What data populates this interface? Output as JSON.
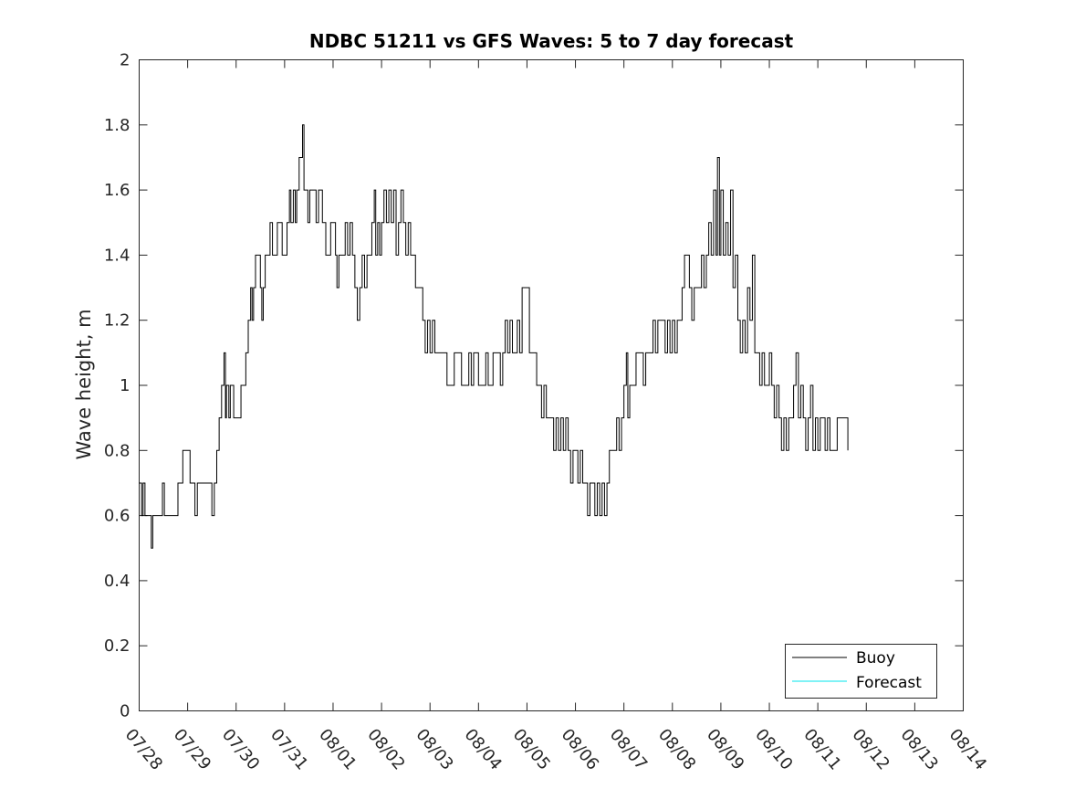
{
  "chart_data": {
    "type": "line",
    "title": "NDBC 51211 vs GFS Waves: 5 to 7 day forecast",
    "xlabel": "",
    "ylabel": "Wave height, m",
    "x_tick_labels": [
      "07/28",
      "07/29",
      "07/30",
      "07/31",
      "08/01",
      "08/02",
      "08/03",
      "08/04",
      "08/05",
      "08/06",
      "08/07",
      "08/08",
      "08/09",
      "08/10",
      "08/11",
      "08/12",
      "08/13",
      "08/14"
    ],
    "y_tick_labels": [
      "0",
      "0.2",
      "0.4",
      "0.6",
      "0.8",
      "1",
      "1.2",
      "1.4",
      "1.6",
      "1.8",
      "2"
    ],
    "xlim": [
      "07/28",
      "08/14"
    ],
    "ylim": [
      0,
      2
    ],
    "grid": false,
    "legend_position": "bottom-right",
    "series": [
      {
        "name": "Buoy",
        "color": "#000000",
        "x_unit": "days since 07/28 00:00",
        "points": [
          [
            0.0,
            0.7
          ],
          [
            0.05,
            0.6
          ],
          [
            0.08,
            0.7
          ],
          [
            0.12,
            0.6
          ],
          [
            0.2,
            0.6
          ],
          [
            0.25,
            0.5
          ],
          [
            0.28,
            0.6
          ],
          [
            0.35,
            0.6
          ],
          [
            0.45,
            0.6
          ],
          [
            0.48,
            0.7
          ],
          [
            0.52,
            0.6
          ],
          [
            0.6,
            0.6
          ],
          [
            0.75,
            0.6
          ],
          [
            0.8,
            0.7
          ],
          [
            0.85,
            0.7
          ],
          [
            0.9,
            0.8
          ],
          [
            1.0,
            0.8
          ],
          [
            1.05,
            0.7
          ],
          [
            1.1,
            0.7
          ],
          [
            1.15,
            0.6
          ],
          [
            1.2,
            0.7
          ],
          [
            1.35,
            0.7
          ],
          [
            1.45,
            0.7
          ],
          [
            1.5,
            0.6
          ],
          [
            1.55,
            0.7
          ],
          [
            1.6,
            0.8
          ],
          [
            1.65,
            0.9
          ],
          [
            1.7,
            1.0
          ],
          [
            1.75,
            1.1
          ],
          [
            1.78,
            0.9
          ],
          [
            1.8,
            1.0
          ],
          [
            1.85,
            0.9
          ],
          [
            1.88,
            1.0
          ],
          [
            1.95,
            0.9
          ],
          [
            2.05,
            0.9
          ],
          [
            2.1,
            1.0
          ],
          [
            2.15,
            1.0
          ],
          [
            2.2,
            1.1
          ],
          [
            2.25,
            1.2
          ],
          [
            2.3,
            1.3
          ],
          [
            2.33,
            1.2
          ],
          [
            2.36,
            1.3
          ],
          [
            2.4,
            1.4
          ],
          [
            2.48,
            1.4
          ],
          [
            2.5,
            1.3
          ],
          [
            2.53,
            1.2
          ],
          [
            2.56,
            1.3
          ],
          [
            2.6,
            1.4
          ],
          [
            2.65,
            1.4
          ],
          [
            2.7,
            1.5
          ],
          [
            2.75,
            1.4
          ],
          [
            2.8,
            1.4
          ],
          [
            2.85,
            1.5
          ],
          [
            2.9,
            1.5
          ],
          [
            2.95,
            1.4
          ],
          [
            3.0,
            1.4
          ],
          [
            3.05,
            1.5
          ],
          [
            3.1,
            1.6
          ],
          [
            3.13,
            1.5
          ],
          [
            3.18,
            1.6
          ],
          [
            3.22,
            1.5
          ],
          [
            3.25,
            1.6
          ],
          [
            3.3,
            1.7
          ],
          [
            3.33,
            1.7
          ],
          [
            3.37,
            1.8
          ],
          [
            3.4,
            1.6
          ],
          [
            3.43,
            1.6
          ],
          [
            3.48,
            1.5
          ],
          [
            3.52,
            1.6
          ],
          [
            3.6,
            1.6
          ],
          [
            3.65,
            1.5
          ],
          [
            3.7,
            1.6
          ],
          [
            3.75,
            1.6
          ],
          [
            3.78,
            1.5
          ],
          [
            3.82,
            1.5
          ],
          [
            3.85,
            1.4
          ],
          [
            3.9,
            1.4
          ],
          [
            3.95,
            1.5
          ],
          [
            4.0,
            1.5
          ],
          [
            4.05,
            1.4
          ],
          [
            4.08,
            1.3
          ],
          [
            4.12,
            1.4
          ],
          [
            4.2,
            1.4
          ],
          [
            4.25,
            1.5
          ],
          [
            4.3,
            1.4
          ],
          [
            4.35,
            1.5
          ],
          [
            4.4,
            1.4
          ],
          [
            4.45,
            1.3
          ],
          [
            4.5,
            1.2
          ],
          [
            4.55,
            1.3
          ],
          [
            4.6,
            1.4
          ],
          [
            4.65,
            1.3
          ],
          [
            4.7,
            1.4
          ],
          [
            4.75,
            1.4
          ],
          [
            4.8,
            1.5
          ],
          [
            4.85,
            1.6
          ],
          [
            4.88,
            1.4
          ],
          [
            4.92,
            1.5
          ],
          [
            4.96,
            1.4
          ],
          [
            5.0,
            1.5
          ],
          [
            5.05,
            1.6
          ],
          [
            5.1,
            1.5
          ],
          [
            5.15,
            1.6
          ],
          [
            5.2,
            1.5
          ],
          [
            5.25,
            1.6
          ],
          [
            5.3,
            1.4
          ],
          [
            5.35,
            1.5
          ],
          [
            5.4,
            1.6
          ],
          [
            5.45,
            1.5
          ],
          [
            5.5,
            1.4
          ],
          [
            5.55,
            1.5
          ],
          [
            5.6,
            1.4
          ],
          [
            5.65,
            1.4
          ],
          [
            5.7,
            1.3
          ],
          [
            5.78,
            1.3
          ],
          [
            5.85,
            1.2
          ],
          [
            5.9,
            1.1
          ],
          [
            5.95,
            1.2
          ],
          [
            6.0,
            1.1
          ],
          [
            6.05,
            1.2
          ],
          [
            6.1,
            1.1
          ],
          [
            6.2,
            1.1
          ],
          [
            6.3,
            1.1
          ],
          [
            6.35,
            1.0
          ],
          [
            6.45,
            1.0
          ],
          [
            6.5,
            1.1
          ],
          [
            6.6,
            1.1
          ],
          [
            6.65,
            1.0
          ],
          [
            6.75,
            1.0
          ],
          [
            6.8,
            1.1
          ],
          [
            6.85,
            1.0
          ],
          [
            6.9,
            1.1
          ],
          [
            6.95,
            1.1
          ],
          [
            7.0,
            1.0
          ],
          [
            7.1,
            1.0
          ],
          [
            7.15,
            1.1
          ],
          [
            7.2,
            1.0
          ],
          [
            7.3,
            1.1
          ],
          [
            7.4,
            1.1
          ],
          [
            7.45,
            1.0
          ],
          [
            7.5,
            1.1
          ],
          [
            7.55,
            1.2
          ],
          [
            7.6,
            1.1
          ],
          [
            7.65,
            1.2
          ],
          [
            7.7,
            1.1
          ],
          [
            7.8,
            1.2
          ],
          [
            7.85,
            1.1
          ],
          [
            7.9,
            1.3
          ],
          [
            8.0,
            1.3
          ],
          [
            8.05,
            1.1
          ],
          [
            8.15,
            1.1
          ],
          [
            8.2,
            1.0
          ],
          [
            8.25,
            1.0
          ],
          [
            8.3,
            0.9
          ],
          [
            8.35,
            1.0
          ],
          [
            8.4,
            0.9
          ],
          [
            8.5,
            0.9
          ],
          [
            8.55,
            0.8
          ],
          [
            8.6,
            0.9
          ],
          [
            8.65,
            0.8
          ],
          [
            8.7,
            0.9
          ],
          [
            8.75,
            0.8
          ],
          [
            8.8,
            0.9
          ],
          [
            8.85,
            0.8
          ],
          [
            8.9,
            0.7
          ],
          [
            8.95,
            0.8
          ],
          [
            9.0,
            0.8
          ],
          [
            9.05,
            0.7
          ],
          [
            9.1,
            0.8
          ],
          [
            9.15,
            0.7
          ],
          [
            9.2,
            0.7
          ],
          [
            9.25,
            0.6
          ],
          [
            9.3,
            0.7
          ],
          [
            9.35,
            0.7
          ],
          [
            9.4,
            0.6
          ],
          [
            9.45,
            0.7
          ],
          [
            9.5,
            0.6
          ],
          [
            9.55,
            0.7
          ],
          [
            9.6,
            0.6
          ],
          [
            9.65,
            0.7
          ],
          [
            9.7,
            0.8
          ],
          [
            9.8,
            0.8
          ],
          [
            9.85,
            0.9
          ],
          [
            9.9,
            0.8
          ],
          [
            9.95,
            0.9
          ],
          [
            10.0,
            1.0
          ],
          [
            10.05,
            1.1
          ],
          [
            10.08,
            0.9
          ],
          [
            10.12,
            1.0
          ],
          [
            10.2,
            1.0
          ],
          [
            10.25,
            1.1
          ],
          [
            10.35,
            1.1
          ],
          [
            10.4,
            1.0
          ],
          [
            10.45,
            1.1
          ],
          [
            10.55,
            1.1
          ],
          [
            10.6,
            1.2
          ],
          [
            10.65,
            1.1
          ],
          [
            10.7,
            1.2
          ],
          [
            10.8,
            1.2
          ],
          [
            10.85,
            1.1
          ],
          [
            10.9,
            1.2
          ],
          [
            10.95,
            1.1
          ],
          [
            11.0,
            1.2
          ],
          [
            11.05,
            1.1
          ],
          [
            11.1,
            1.2
          ],
          [
            11.15,
            1.2
          ],
          [
            11.2,
            1.3
          ],
          [
            11.25,
            1.4
          ],
          [
            11.3,
            1.4
          ],
          [
            11.35,
            1.3
          ],
          [
            11.4,
            1.2
          ],
          [
            11.45,
            1.3
          ],
          [
            11.55,
            1.3
          ],
          [
            11.6,
            1.4
          ],
          [
            11.65,
            1.3
          ],
          [
            11.7,
            1.4
          ],
          [
            11.75,
            1.5
          ],
          [
            11.8,
            1.4
          ],
          [
            11.85,
            1.6
          ],
          [
            11.9,
            1.4
          ],
          [
            11.93,
            1.7
          ],
          [
            11.97,
            1.4
          ],
          [
            12.0,
            1.6
          ],
          [
            12.05,
            1.4
          ],
          [
            12.1,
            1.5
          ],
          [
            12.15,
            1.4
          ],
          [
            12.2,
            1.6
          ],
          [
            12.25,
            1.3
          ],
          [
            12.3,
            1.4
          ],
          [
            12.35,
            1.2
          ],
          [
            12.4,
            1.1
          ],
          [
            12.45,
            1.2
          ],
          [
            12.5,
            1.1
          ],
          [
            12.55,
            1.3
          ],
          [
            12.6,
            1.2
          ],
          [
            12.65,
            1.4
          ],
          [
            12.7,
            1.1
          ],
          [
            12.75,
            1.1
          ],
          [
            12.8,
            1.0
          ],
          [
            12.85,
            1.1
          ],
          [
            12.9,
            1.0
          ],
          [
            13.0,
            1.1
          ],
          [
            13.05,
            1.0
          ],
          [
            13.1,
            0.9
          ],
          [
            13.15,
            1.0
          ],
          [
            13.2,
            0.9
          ],
          [
            13.25,
            0.8
          ],
          [
            13.3,
            0.9
          ],
          [
            13.35,
            0.8
          ],
          [
            13.4,
            0.9
          ],
          [
            13.5,
            1.0
          ],
          [
            13.55,
            1.1
          ],
          [
            13.6,
            0.9
          ],
          [
            13.65,
            1.0
          ],
          [
            13.7,
            0.9
          ],
          [
            13.75,
            0.8
          ],
          [
            13.8,
            0.9
          ],
          [
            13.85,
            1.0
          ],
          [
            13.9,
            0.8
          ],
          [
            13.95,
            0.9
          ],
          [
            14.0,
            0.8
          ],
          [
            14.05,
            0.9
          ],
          [
            14.15,
            0.8
          ],
          [
            14.2,
            0.9
          ],
          [
            14.25,
            0.8
          ],
          [
            14.35,
            0.8
          ],
          [
            14.4,
            0.9
          ],
          [
            14.6,
            0.9
          ],
          [
            14.62,
            0.8
          ]
        ]
      },
      {
        "name": "Forecast",
        "color": "#00e5ee",
        "points": []
      }
    ]
  }
}
